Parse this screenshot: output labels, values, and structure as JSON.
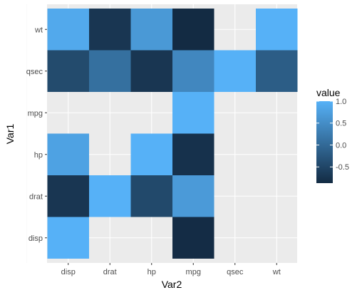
{
  "chart_data": {
    "type": "heatmap",
    "xlabel": "Var2",
    "ylabel": "Var1",
    "x_categories": [
      "disp",
      "drat",
      "hp",
      "mpg",
      "qsec",
      "wt"
    ],
    "y_categories": [
      "disp",
      "drat",
      "hp",
      "mpg",
      "qsec",
      "wt"
    ],
    "cells": [
      {
        "x": "disp",
        "y": "disp",
        "value": 1.0
      },
      {
        "x": "mpg",
        "y": "disp",
        "value": -0.85
      },
      {
        "x": "disp",
        "y": "drat",
        "value": -0.71
      },
      {
        "x": "drat",
        "y": "drat",
        "value": 1.0
      },
      {
        "x": "hp",
        "y": "drat",
        "value": -0.45
      },
      {
        "x": "mpg",
        "y": "drat",
        "value": 0.68
      },
      {
        "x": "disp",
        "y": "hp",
        "value": 0.79
      },
      {
        "x": "hp",
        "y": "hp",
        "value": 1.0
      },
      {
        "x": "mpg",
        "y": "hp",
        "value": -0.78
      },
      {
        "x": "mpg",
        "y": "mpg",
        "value": 1.0
      },
      {
        "x": "disp",
        "y": "qsec",
        "value": -0.43
      },
      {
        "x": "drat",
        "y": "qsec",
        "value": 0.09
      },
      {
        "x": "hp",
        "y": "qsec",
        "value": -0.71
      },
      {
        "x": "mpg",
        "y": "qsec",
        "value": 0.42
      },
      {
        "x": "qsec",
        "y": "qsec",
        "value": 1.0
      },
      {
        "x": "wt",
        "y": "qsec",
        "value": -0.17
      },
      {
        "x": "disp",
        "y": "wt",
        "value": 0.89
      },
      {
        "x": "drat",
        "y": "wt",
        "value": -0.71
      },
      {
        "x": "hp",
        "y": "wt",
        "value": 0.66
      },
      {
        "x": "mpg",
        "y": "wt",
        "value": -0.87
      },
      {
        "x": "wt",
        "y": "wt",
        "value": 1.0
      }
    ],
    "legend": {
      "title": "value",
      "ticks": [
        1.0,
        0.5,
        0.0,
        -0.5
      ],
      "tick_labels": [
        "1.0",
        "0.5",
        "0.0",
        "-0.5"
      ],
      "range": [
        -0.87,
        1.0
      ],
      "low_color": "#132B43",
      "high_color": "#56B1F7",
      "placement": "right"
    },
    "panel_background": "#EBEBEB",
    "grid": true
  }
}
